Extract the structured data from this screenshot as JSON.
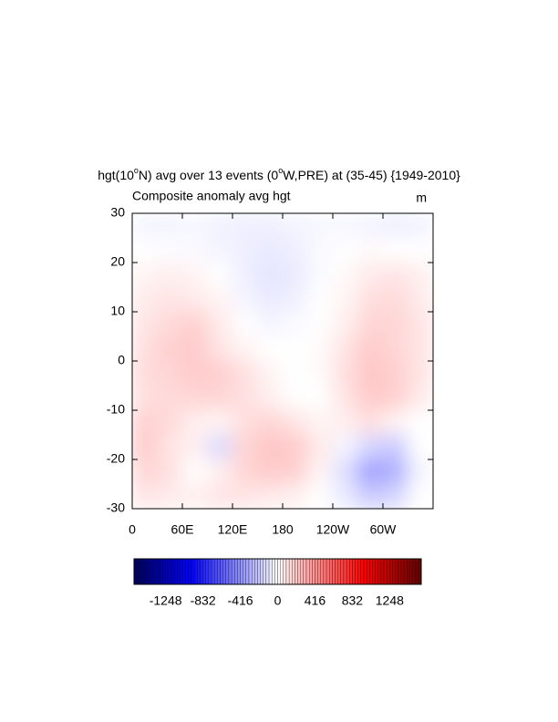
{
  "chart_data": {
    "type": "heatmap",
    "title_parts": [
      "hgt(10",
      "o",
      "N) avg over 13 events (0",
      "o",
      "W,PRE) at (35-45) {1949-2010}"
    ],
    "left_string": "Composite anomaly avg hgt",
    "right_string": "m",
    "x": [
      15,
      45,
      75,
      105,
      135,
      165,
      195,
      225,
      255,
      285,
      315,
      345
    ],
    "y": [
      27.5,
      22.5,
      17.5,
      12.5,
      7.5,
      2.5,
      -2.5,
      -7.5,
      -12.5,
      -17.5,
      -22.5,
      -27.5
    ],
    "values": [
      [
        -40,
        -40,
        -30,
        -50,
        -60,
        -60,
        -40,
        -30,
        -30,
        -40,
        -60,
        -50
      ],
      [
        0,
        -10,
        -20,
        -40,
        -60,
        -80,
        -60,
        -20,
        0,
        20,
        0,
        0
      ],
      [
        40,
        60,
        40,
        0,
        -60,
        -100,
        -80,
        -20,
        20,
        80,
        100,
        60
      ],
      [
        80,
        100,
        80,
        40,
        -40,
        -80,
        -60,
        0,
        40,
        120,
        140,
        80
      ],
      [
        100,
        140,
        180,
        80,
        0,
        -40,
        -20,
        0,
        60,
        160,
        160,
        100
      ],
      [
        120,
        180,
        200,
        100,
        40,
        0,
        0,
        20,
        100,
        200,
        160,
        100
      ],
      [
        140,
        160,
        200,
        180,
        120,
        40,
        0,
        20,
        120,
        220,
        180,
        100
      ],
      [
        120,
        140,
        160,
        160,
        120,
        60,
        0,
        0,
        100,
        200,
        180,
        80
      ],
      [
        180,
        140,
        60,
        40,
        120,
        160,
        100,
        40,
        60,
        120,
        40,
        0
      ],
      [
        200,
        100,
        60,
        -140,
        160,
        220,
        200,
        80,
        -40,
        -160,
        -200,
        0
      ],
      [
        160,
        120,
        0,
        60,
        160,
        200,
        180,
        40,
        -120,
        -360,
        -300,
        -40
      ],
      [
        100,
        80,
        60,
        100,
        100,
        80,
        60,
        0,
        -80,
        -200,
        -160,
        0
      ]
    ],
    "xlim": [
      0,
      360
    ],
    "ylim": [
      -30,
      30
    ],
    "xticks": [
      0,
      {
        "value": 60,
        "label": "60E"
      },
      {
        "value": 120,
        "label": "120E"
      },
      180,
      {
        "value": 240,
        "label": "120W"
      },
      {
        "value": 300,
        "label": "60W"
      }
    ],
    "yticks": [
      -30,
      -20,
      -10,
      0,
      10,
      20,
      30
    ],
    "colorbar": {
      "min": -1600,
      "max": 1600,
      "step": 32,
      "ticks": [
        -1248,
        -832,
        -416,
        0,
        416,
        832,
        1248
      ]
    }
  }
}
